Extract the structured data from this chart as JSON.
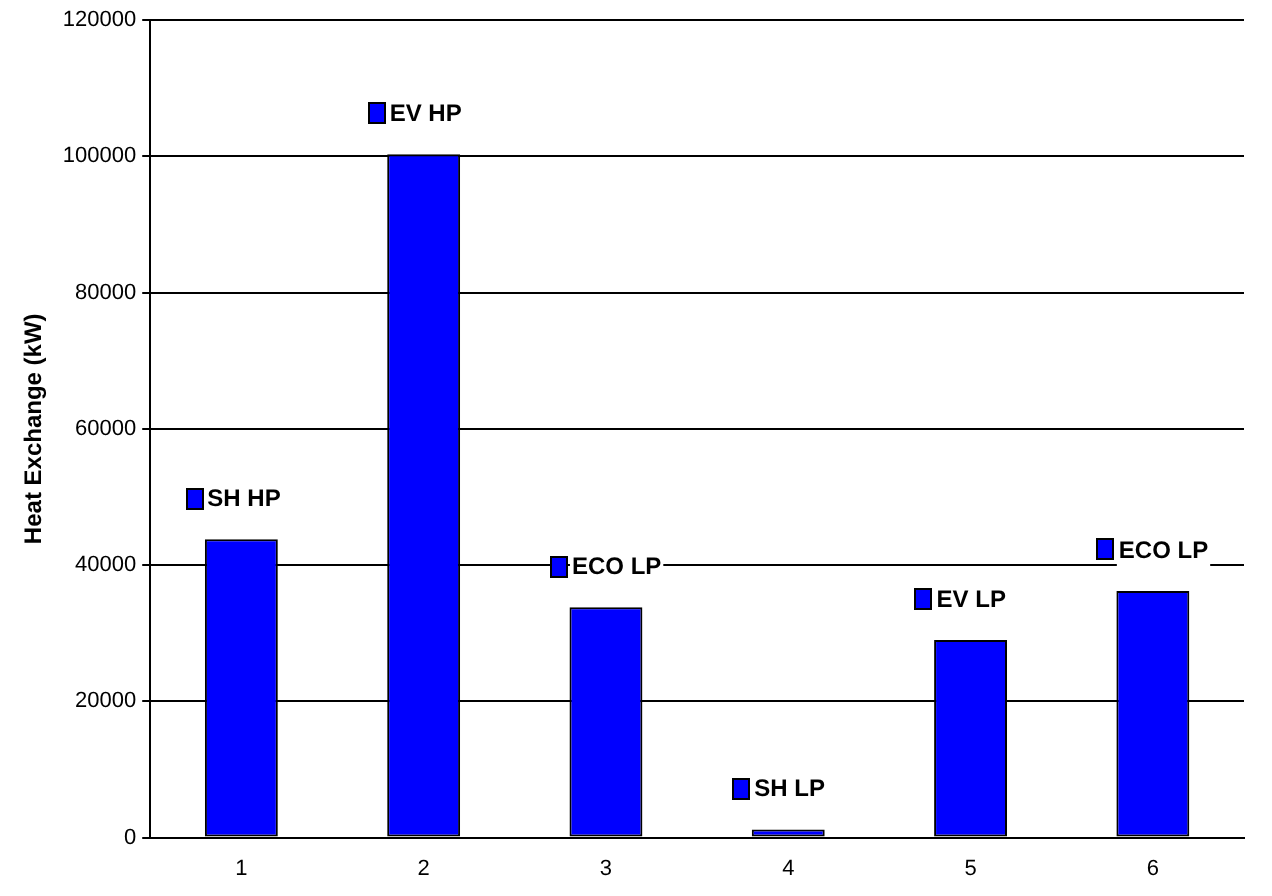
{
  "chart_data": {
    "type": "bar",
    "ylabel": "Heat Exchange (kW)",
    "categories": [
      "1",
      "2",
      "3",
      "4",
      "5",
      "6"
    ],
    "values": [
      43800,
      100300,
      33800,
      1200,
      29000,
      36200
    ],
    "color": "#0000ff",
    "ylim": [
      0,
      120000
    ],
    "yticks": [
      0,
      20000,
      40000,
      60000,
      80000,
      100000,
      120000
    ],
    "grid": "y",
    "annotations": [
      {
        "text": "SH HP",
        "x": "1",
        "y": 43800
      },
      {
        "text": "EV HP",
        "x": "2",
        "y": 100300
      },
      {
        "text": "ECO LP",
        "x": "3",
        "y": 33800
      },
      {
        "text": "SH LP",
        "x": "4",
        "y": 1200
      },
      {
        "text": "EV LP",
        "x": "5",
        "y": 29000
      },
      {
        "text": "ECO LP",
        "x": "6",
        "y": 36200
      }
    ]
  }
}
